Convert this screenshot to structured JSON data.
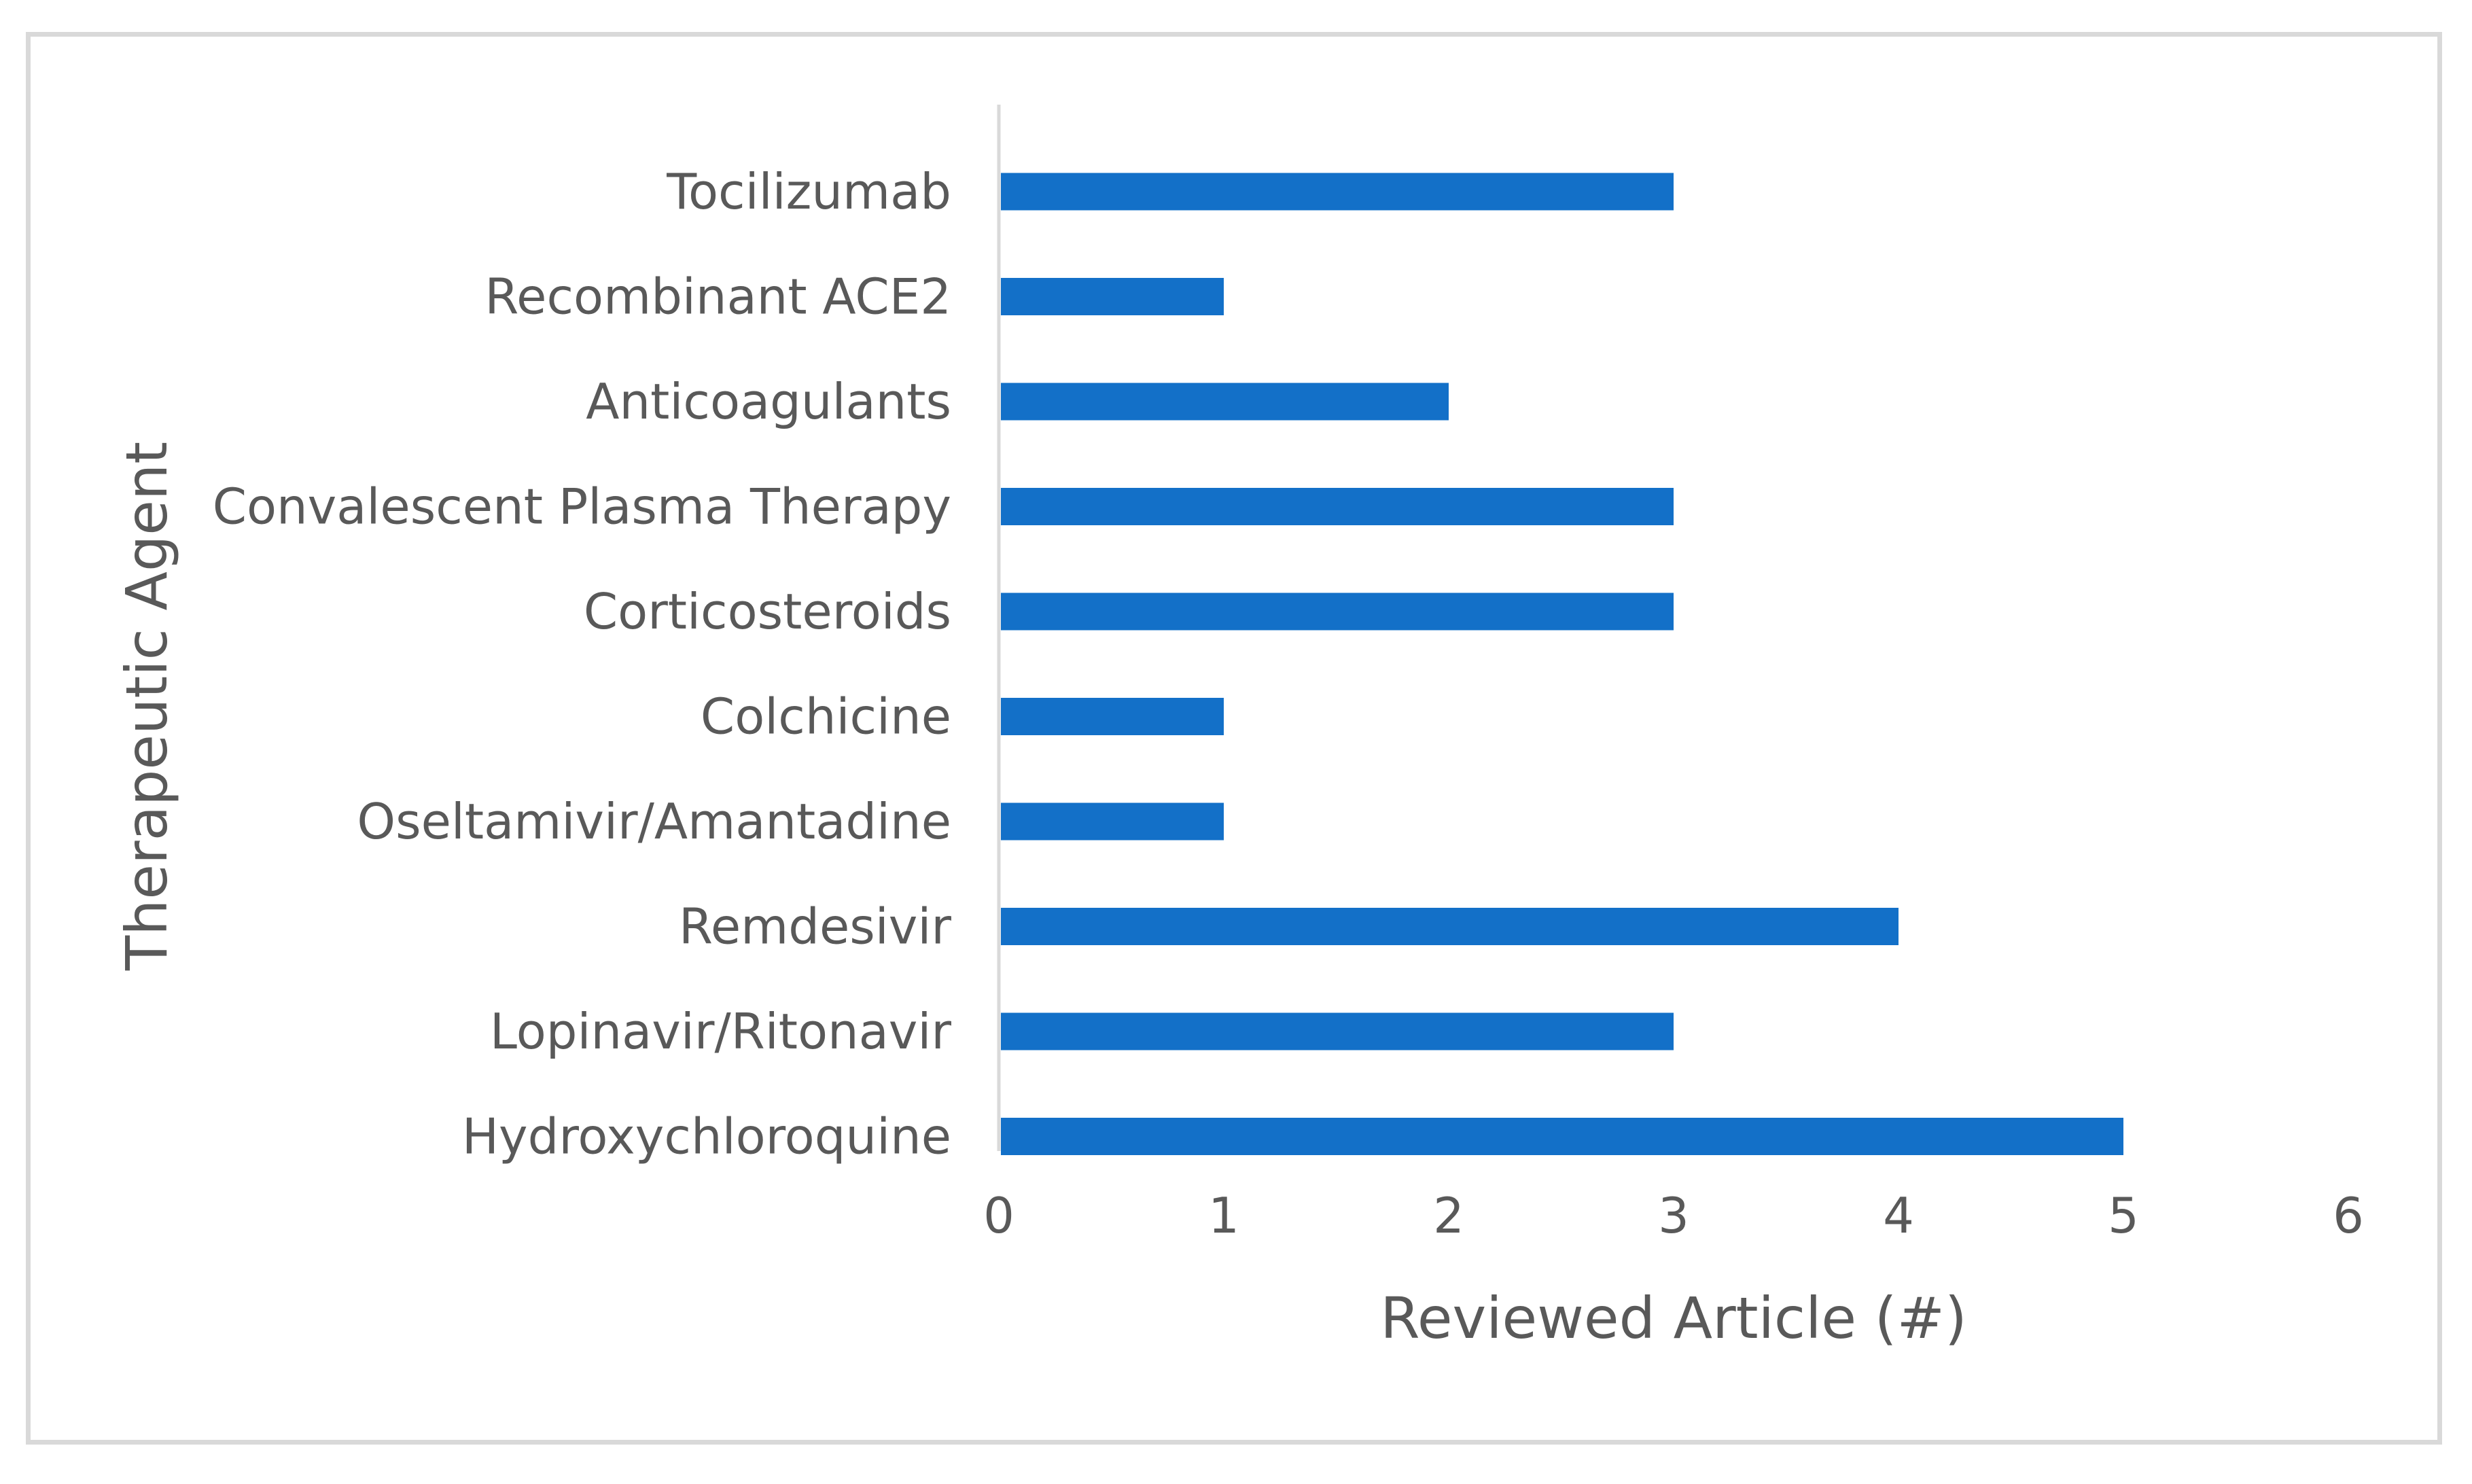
{
  "chart_data": {
    "type": "bar",
    "orientation": "horizontal",
    "title": "",
    "xlabel": "Reviewed Article (#)",
    "ylabel": "Therapeutic Agent",
    "categories": [
      "Tocilizumab",
      "Recombinant ACE2",
      "Anticoagulants",
      "Convalescent Plasma Therapy",
      "Corticosteroids",
      "Colchicine",
      "Oseltamivir/Amantadine",
      "Remdesivir",
      "Lopinavir/Ritonavir",
      "Hydroxychloroquine"
    ],
    "values": [
      3,
      1,
      2,
      3,
      3,
      1,
      1,
      4,
      3,
      5
    ],
    "xlim": [
      0,
      6
    ],
    "xticks": [
      "0",
      "1",
      "2",
      "3",
      "4",
      "5",
      "6"
    ],
    "grid": false,
    "legend": "none",
    "bar_color": "#1370c8",
    "axis_color": "#d9d9d9",
    "text_color": "#595959"
  }
}
